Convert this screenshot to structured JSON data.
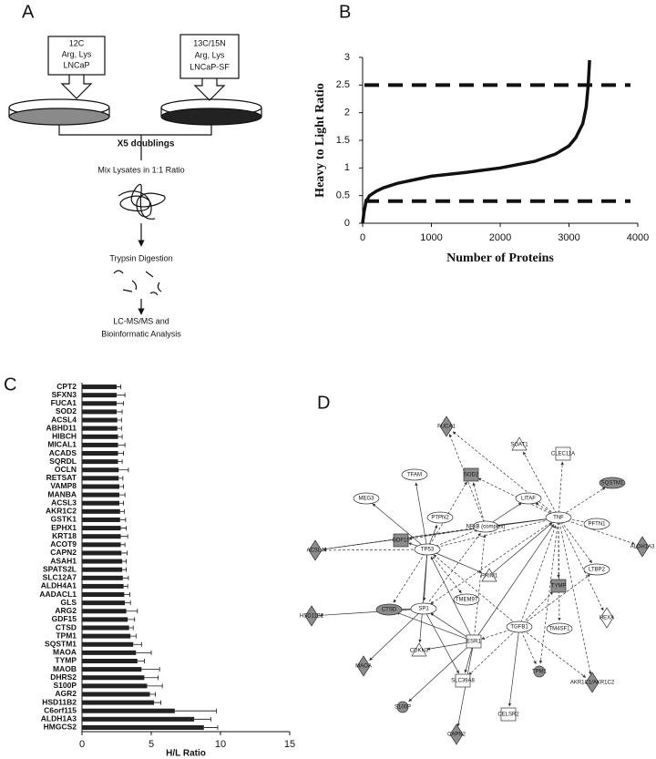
{
  "panel_labels": [
    "A",
    "B",
    "C",
    "D"
  ],
  "workflow": {
    "light_label": [
      "12C",
      "Arg, Lys",
      "LNCaP"
    ],
    "heavy_label": [
      "13C/15N",
      "Arg, Lys",
      "LNCaP-SF"
    ],
    "steps": [
      "X5 doublings",
      "Mix Lysates in 1:1 Ratio",
      "Trypsin Digestion"
    ],
    "final": [
      "LC-MS/MS and",
      "Bioinformatic Analysis"
    ]
  },
  "chart_data": [
    {
      "type": "line",
      "xlabel": "Number of Proteins",
      "ylabel": "Heavy to Light Ratio",
      "color": "#111111",
      "x": [
        0,
        20,
        50,
        100,
        200,
        300,
        500,
        800,
        1000,
        1500,
        2000,
        2500,
        2800,
        3000,
        3100,
        3200,
        3250,
        3280,
        3300
      ],
      "values": [
        0,
        0.2,
        0.4,
        0.5,
        0.58,
        0.64,
        0.72,
        0.8,
        0.85,
        0.92,
        1.0,
        1.12,
        1.25,
        1.4,
        1.55,
        1.8,
        2.1,
        2.5,
        2.95
      ],
      "hlines": [
        2.5,
        0.4
      ],
      "xlim": [
        0,
        4000
      ],
      "xticks": [
        0,
        1000,
        2000,
        3000,
        4000
      ],
      "ylim": [
        0,
        3
      ],
      "yticks": [
        0,
        0.5,
        1,
        1.5,
        2,
        2.5,
        3
      ]
    },
    {
      "type": "bar",
      "orientation": "horizontal",
      "xlabel": "H/L Ratio",
      "color": "#222222",
      "categories": [
        "CPT2",
        "SFXN3",
        "FUCA1",
        "SOD2",
        "ACSL4",
        "ABHD11",
        "HIBCH",
        "MICAL1",
        "ACADS",
        "SQRDL",
        "OCLN",
        "RETSAT",
        "VAMP8",
        "MANBA",
        "ACSL3",
        "AKR1C2",
        "GSTK1",
        "EPHX1",
        "KRT18",
        "ACOT9",
        "CAPN2",
        "ASAH1",
        "SPATS2L",
        "SLC12A7",
        "ALDH4A1",
        "AADACL1",
        "GLS",
        "ARG2",
        "GDF15",
        "CTSD",
        "TPM1",
        "SQSTM1",
        "MAOA",
        "TYMP",
        "MAOB",
        "DHRS2",
        "S100P",
        "AGR2",
        "HSD11B2",
        "C6orf115",
        "ALDH1A3",
        "HMGCS2"
      ],
      "values": [
        2.5,
        2.5,
        2.5,
        2.5,
        2.55,
        2.55,
        2.6,
        2.6,
        2.6,
        2.6,
        2.65,
        2.65,
        2.7,
        2.7,
        2.7,
        2.75,
        2.75,
        2.8,
        2.8,
        2.8,
        2.85,
        2.9,
        2.9,
        2.95,
        3.0,
        3.05,
        3.1,
        3.2,
        3.3,
        3.4,
        3.5,
        3.7,
        3.9,
        4.0,
        4.3,
        4.5,
        4.7,
        4.9,
        5.2,
        6.7,
        8.1,
        8.8
      ],
      "errors": [
        0.3,
        0.6,
        0.5,
        0.4,
        0.3,
        0.3,
        0.3,
        0.5,
        0.4,
        0.3,
        0.7,
        0.3,
        0.3,
        0.4,
        0.3,
        0.3,
        0.4,
        0.4,
        0.5,
        0.3,
        0.4,
        0.3,
        0.3,
        0.4,
        0.3,
        0.4,
        0.4,
        0.8,
        0.5,
        0.3,
        0.4,
        0.6,
        1.1,
        0.5,
        1.3,
        1.0,
        1.1,
        0.4,
        0.5,
        3.0,
        1.2,
        1.0
      ],
      "xlim": [
        0,
        15
      ],
      "xticks": [
        0,
        5,
        10,
        15
      ]
    }
  ],
  "network": {
    "nodes": [
      {
        "label": "FUCA1",
        "shape": "diamond",
        "shaded": true
      },
      {
        "label": "SOAT1",
        "shape": "triangle",
        "shaded": false
      },
      {
        "label": "CLEC11A",
        "shape": "rect",
        "shaded": false
      },
      {
        "label": "TFAM",
        "shape": "ellipse",
        "shaded": false
      },
      {
        "label": "SOD2",
        "shape": "rect",
        "shaded": true
      },
      {
        "label": "SQSTM1",
        "shape": "ellipse",
        "shaded": true
      },
      {
        "label": "LITAF",
        "shape": "ellipse",
        "shaded": false
      },
      {
        "label": "MEG3",
        "shape": "ellipse",
        "shaded": false
      },
      {
        "label": "PTPN2",
        "shape": "ellipse",
        "shaded": false
      },
      {
        "label": "NFkB (complex)",
        "shape": "ellipse",
        "shaded": false
      },
      {
        "label": "TNF",
        "shape": "ellipse",
        "shaded": false
      },
      {
        "label": "PFTN1",
        "shape": "ellipse",
        "shaded": false
      },
      {
        "label": "ALDH1A3",
        "shape": "diamond",
        "shaded": true
      },
      {
        "label": "ACSL4",
        "shape": "diamond",
        "shaded": true
      },
      {
        "label": "GDF15",
        "shape": "rect",
        "shaded": true
      },
      {
        "label": "TP53",
        "shape": "ellipse",
        "shaded": false
      },
      {
        "label": "LTBP2",
        "shape": "ellipse",
        "shaded": false
      },
      {
        "label": "PRIM1",
        "shape": "triangle",
        "shaded": false
      },
      {
        "label": "TYMP",
        "shape": "rect",
        "shaded": true
      },
      {
        "label": "TMEM97",
        "shape": "ellipse",
        "shaded": false
      },
      {
        "label": "HSD11B2",
        "shape": "diamond",
        "shaded": true
      },
      {
        "label": "CTSD",
        "shape": "ellipse",
        "shaded": true
      },
      {
        "label": "SP1",
        "shape": "ellipse",
        "shaded": false
      },
      {
        "label": "TGFB1",
        "shape": "ellipse",
        "shaded": false
      },
      {
        "label": "TM4SF1",
        "shape": "ellipse",
        "shaded": false
      },
      {
        "label": "HEXA",
        "shape": "diamond",
        "shaded": false
      },
      {
        "label": "ESR1",
        "shape": "rect",
        "shaded": false
      },
      {
        "label": "CDKN3",
        "shape": "triangle",
        "shaded": false
      },
      {
        "label": "MAOA",
        "shape": "diamond",
        "shaded": true
      },
      {
        "label": "SLC39A8",
        "shape": "rect",
        "shaded": false
      },
      {
        "label": "TPM1",
        "shape": "circle",
        "shaded": true
      },
      {
        "label": "AKR1C1/AKR1C2",
        "shape": "diamond",
        "shaded": true
      },
      {
        "label": "S100P",
        "shape": "circle",
        "shaded": true
      },
      {
        "label": "CELSR2",
        "shape": "rect",
        "shaded": false
      },
      {
        "label": "CAPN2",
        "shape": "diamond",
        "shaded": true
      }
    ]
  }
}
